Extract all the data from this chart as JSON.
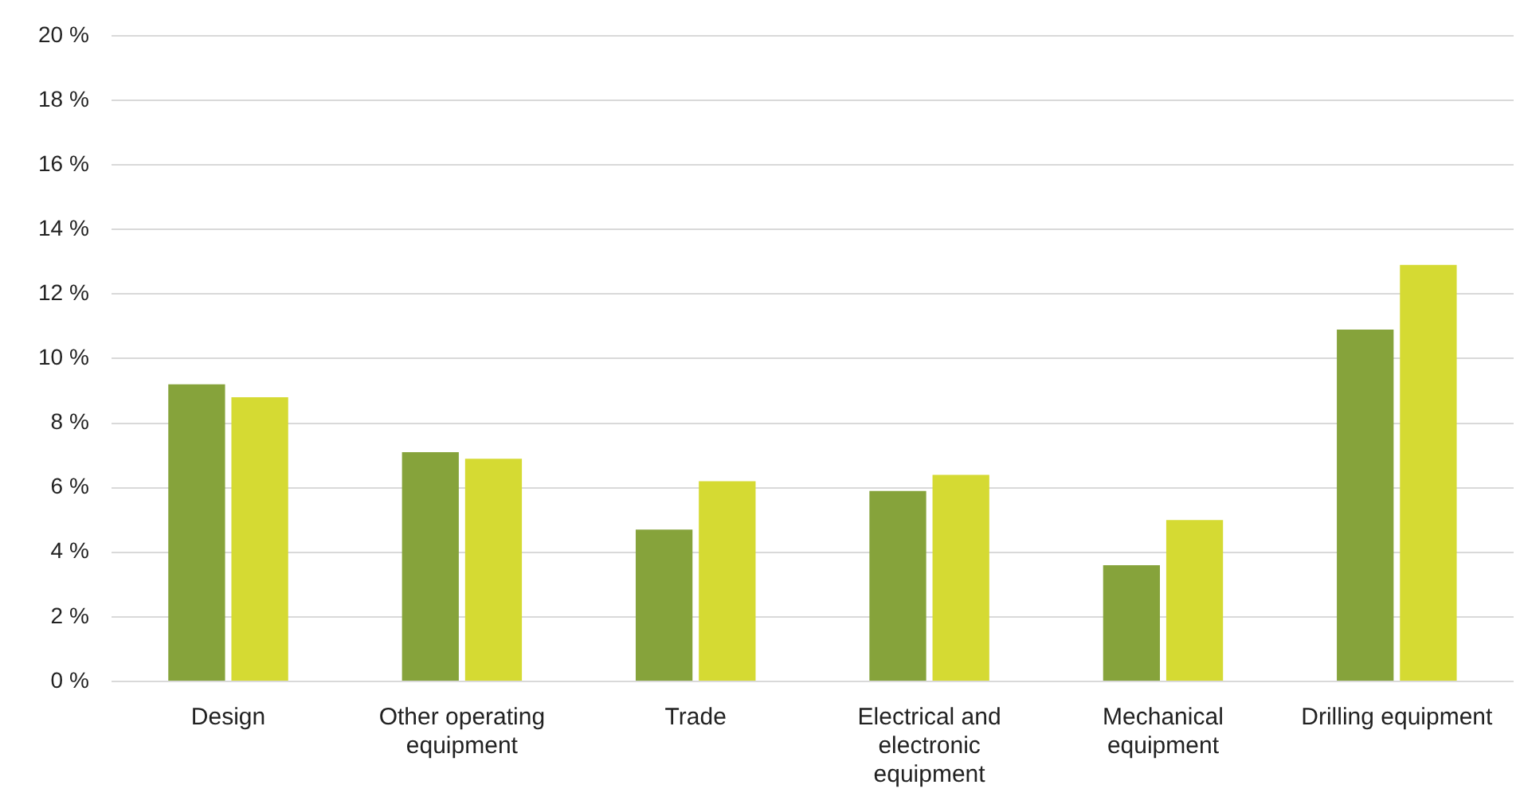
{
  "chart_data": {
    "type": "bar",
    "categories": [
      "Design",
      "Other operating equipment",
      "Trade",
      "Electrical and electronic equipment",
      "Mechanical equipment",
      "Drilling equipment"
    ],
    "series": [
      {
        "color": "#86a33b",
        "values": [
          9.2,
          7.1,
          4.7,
          5.9,
          3.6,
          10.9
        ]
      },
      {
        "color": "#d5da33",
        "values": [
          8.8,
          6.9,
          6.2,
          6.4,
          5.0,
          12.9
        ]
      }
    ],
    "ylim": [
      0,
      20
    ],
    "yticks": [
      {
        "value": 0,
        "label": "0 %"
      },
      {
        "value": 2,
        "label": "2 %"
      },
      {
        "value": 4,
        "label": "4 %"
      },
      {
        "value": 6,
        "label": "6 %"
      },
      {
        "value": 8,
        "label": "8 %"
      },
      {
        "value": 10,
        "label": "10 %"
      },
      {
        "value": 12,
        "label": "12 %"
      },
      {
        "value": 14,
        "label": "14 %"
      },
      {
        "value": 16,
        "label": "16 %"
      },
      {
        "value": 18,
        "label": "18 %"
      },
      {
        "value": 20,
        "label": "20 %"
      }
    ],
    "grid": "y",
    "legend": false
  }
}
